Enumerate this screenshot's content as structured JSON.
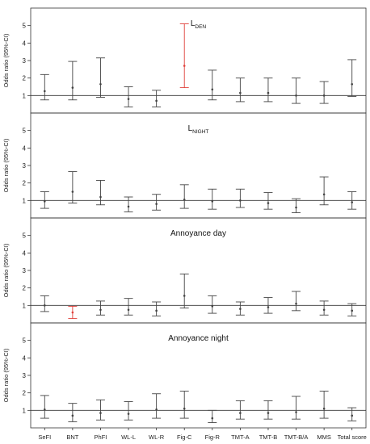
{
  "chart_data": {
    "type": "error-bar",
    "categories": [
      "SeFI",
      "BNT",
      "PhFI",
      "WL-L",
      "WL-R",
      "Fig-C",
      "Fig-R",
      "TMT-A",
      "TMT-B",
      "TMT-B/A",
      "MMS",
      "Total score"
    ],
    "ylim": [
      0,
      6
    ],
    "yticks": [
      1,
      2,
      3,
      4,
      5
    ],
    "reference_line": 1,
    "default_color": "#444444",
    "highlight_color": "#e0403a",
    "panels": [
      {
        "title": "L",
        "subscript": "DEN",
        "ylabel": "Odds ratio (95%-CI)",
        "estimates": [
          1.25,
          1.45,
          1.65,
          0.8,
          0.7,
          2.7,
          1.35,
          1.15,
          1.15,
          1.0,
          1.0,
          1.65
        ],
        "lower": [
          0.75,
          0.75,
          0.9,
          0.35,
          0.35,
          1.45,
          0.75,
          0.65,
          0.65,
          0.55,
          0.55,
          0.95
        ],
        "upper": [
          2.2,
          2.95,
          3.15,
          1.5,
          1.3,
          5.1,
          2.45,
          2.0,
          2.0,
          2.0,
          1.8,
          3.05
        ],
        "highlight": [
          false,
          false,
          false,
          false,
          false,
          true,
          false,
          false,
          false,
          false,
          false,
          false
        ]
      },
      {
        "title": "L",
        "subscript": "NIGHT",
        "ylabel": "Odds ratio (95%-CI)",
        "estimates": [
          0.95,
          1.5,
          1.2,
          0.65,
          0.8,
          1.05,
          0.95,
          1.0,
          0.85,
          0.6,
          1.35,
          0.9
        ],
        "lower": [
          0.55,
          0.85,
          0.75,
          0.35,
          0.45,
          0.55,
          0.5,
          0.6,
          0.5,
          0.3,
          0.75,
          0.5
        ],
        "upper": [
          1.5,
          2.65,
          2.15,
          1.2,
          1.35,
          1.9,
          1.65,
          1.65,
          1.45,
          1.1,
          2.35,
          1.5
        ],
        "highlight": [
          false,
          false,
          false,
          false,
          false,
          false,
          false,
          false,
          false,
          false,
          false,
          false
        ]
      },
      {
        "title": "Annoyance day",
        "subscript": "",
        "ylabel": "Odds ratio (95%-CI)",
        "estimates": [
          1.0,
          0.6,
          0.75,
          0.75,
          0.7,
          1.55,
          0.95,
          0.8,
          0.9,
          1.1,
          0.75,
          0.7
        ],
        "lower": [
          0.65,
          0.25,
          0.45,
          0.45,
          0.4,
          0.85,
          0.55,
          0.45,
          0.55,
          0.7,
          0.45,
          0.4
        ],
        "upper": [
          1.55,
          0.95,
          1.25,
          1.4,
          1.2,
          2.8,
          1.55,
          1.2,
          1.45,
          1.8,
          1.25,
          1.1
        ],
        "highlight": [
          false,
          true,
          false,
          false,
          false,
          false,
          false,
          false,
          false,
          false,
          false,
          false
        ]
      },
      {
        "title": "Annoyance night",
        "subscript": "",
        "ylabel": "Odds ratio (95%-CI)",
        "estimates": [
          1.05,
          0.7,
          0.85,
          0.8,
          1.05,
          1.1,
          0.55,
          0.85,
          0.85,
          0.9,
          1.1,
          0.7
        ],
        "lower": [
          0.55,
          0.35,
          0.45,
          0.45,
          0.55,
          0.55,
          0.3,
          0.5,
          0.5,
          0.5,
          0.55,
          0.4
        ],
        "upper": [
          1.85,
          1.4,
          1.6,
          1.5,
          1.95,
          2.1,
          1.0,
          1.55,
          1.55,
          1.8,
          2.1,
          1.15
        ],
        "highlight": [
          false,
          false,
          false,
          false,
          false,
          false,
          false,
          false,
          false,
          false,
          false,
          false
        ]
      }
    ]
  }
}
